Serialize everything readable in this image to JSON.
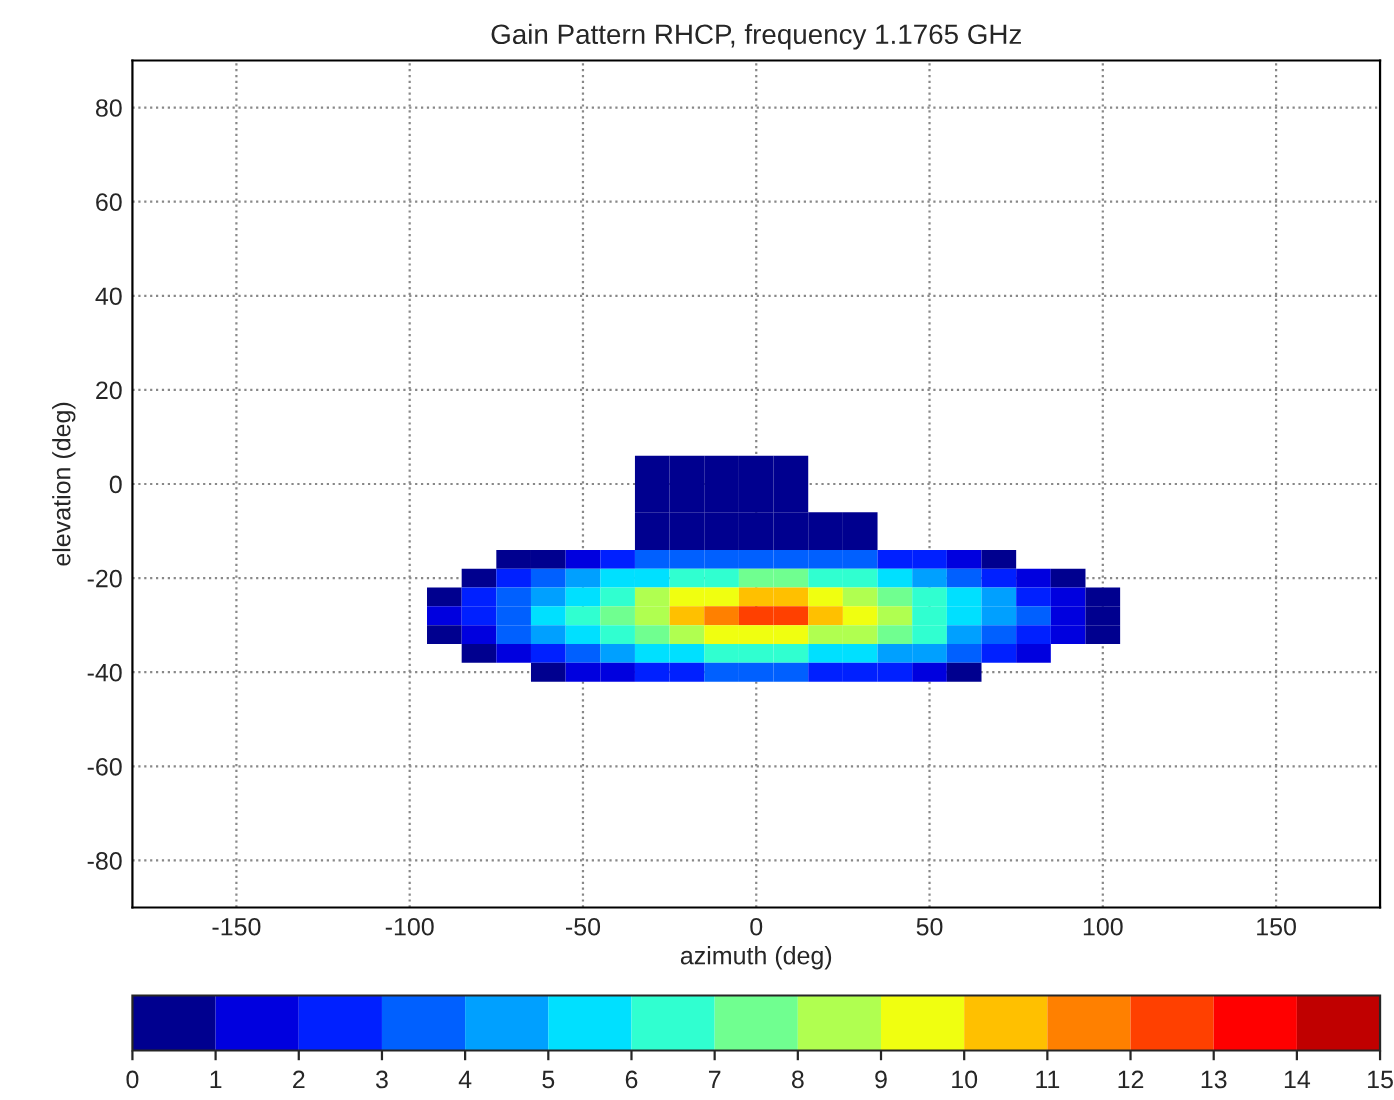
{
  "chart_data": {
    "type": "heatmap",
    "title": "Gain Pattern RHCP, frequency 1.1765 GHz",
    "xlabel": "azimuth (deg)",
    "ylabel": "elevation (deg)",
    "x": [
      -100,
      -90,
      -80,
      -70,
      -60,
      -50,
      -40,
      -30,
      -20,
      -10,
      0,
      10,
      20,
      30,
      40,
      50,
      60,
      70,
      80,
      90,
      100
    ],
    "y": [
      0,
      -12,
      -16,
      -20,
      -24,
      -28,
      -32,
      -36,
      -40
    ],
    "cells": [
      [
        null,
        null,
        null,
        null,
        null,
        null,
        null,
        0.5,
        0.5,
        0.5,
        0.5,
        0.5,
        null,
        null,
        null,
        null,
        null,
        null,
        null,
        null,
        null
      ],
      [
        null,
        null,
        null,
        null,
        null,
        null,
        null,
        0.1,
        0.5,
        0.7,
        0.8,
        0.8,
        0.6,
        0.3,
        null,
        null,
        null,
        null,
        null,
        null,
        null
      ],
      [
        null,
        null,
        null,
        0.1,
        0.9,
        1.7,
        2.4,
        3.0,
        3.5,
        3.8,
        3.9,
        3.9,
        3.7,
        3.3,
        2.8,
        2.1,
        1.3,
        0.5,
        null,
        null,
        null
      ],
      [
        null,
        null,
        0.9,
        2.0,
        3.1,
        4.1,
        5.0,
        5.8,
        6.4,
        6.9,
        7.1,
        7.0,
        6.7,
        6.1,
        5.4,
        4.5,
        3.6,
        2.6,
        1.5,
        0.4,
        null
      ],
      [
        null,
        0.9,
        2.1,
        3.4,
        4.6,
        5.8,
        6.9,
        8.0,
        9.0,
        9.8,
        10.2,
        10.1,
        9.4,
        8.5,
        7.5,
        6.3,
        5.2,
        4.0,
        2.7,
        1.5,
        0.3
      ],
      [
        null,
        1.2,
        2.5,
        3.7,
        5.0,
        6.3,
        7.6,
        8.8,
        10.1,
        11.4,
        12.4,
        12.0,
        10.7,
        9.5,
        8.2,
        6.9,
        5.7,
        4.4,
        3.1,
        1.8,
        0.6
      ],
      [
        null,
        0.7,
        1.9,
        3.1,
        4.3,
        5.4,
        6.5,
        7.5,
        8.4,
        9.1,
        9.4,
        9.3,
        8.8,
        8.0,
        7.1,
        6.0,
        4.9,
        3.7,
        2.5,
        1.3,
        0.1
      ],
      [
        null,
        null,
        0.5,
        1.6,
        2.6,
        3.5,
        4.4,
        5.1,
        5.7,
        6.1,
        6.3,
        6.2,
        5.9,
        5.4,
        4.8,
        4.0,
        3.1,
        2.1,
        1.1,
        null,
        null
      ],
      [
        null,
        null,
        null,
        null,
        0.3,
        1.1,
        1.8,
        2.3,
        2.7,
        3.0,
        3.1,
        3.1,
        2.9,
        2.5,
        2.1,
        1.4,
        0.7,
        null,
        null,
        null,
        null
      ]
    ],
    "colors": [
      "#00008f",
      "#0000df",
      "#0020ff",
      "#0060ff",
      "#00a0ff",
      "#00e0ff",
      "#30ffd0",
      "#70ff90",
      "#b0ff50",
      "#f0ff10",
      "#ffc000",
      "#ff8000",
      "#ff4000",
      "#ff0000",
      "#c00000"
    ],
    "clim": [
      0,
      15
    ],
    "cticks": [
      0,
      1,
      2,
      3,
      4,
      5,
      6,
      7,
      8,
      9,
      10,
      11,
      12,
      13,
      14,
      15
    ],
    "xlim": [
      -180,
      180
    ],
    "xticks": [
      -150,
      -100,
      -50,
      0,
      50,
      100,
      150
    ],
    "ylim": [
      -90,
      90
    ],
    "yticks": [
      -80,
      -60,
      -40,
      -20,
      0,
      20,
      40,
      60,
      80
    ],
    "grid": true
  }
}
